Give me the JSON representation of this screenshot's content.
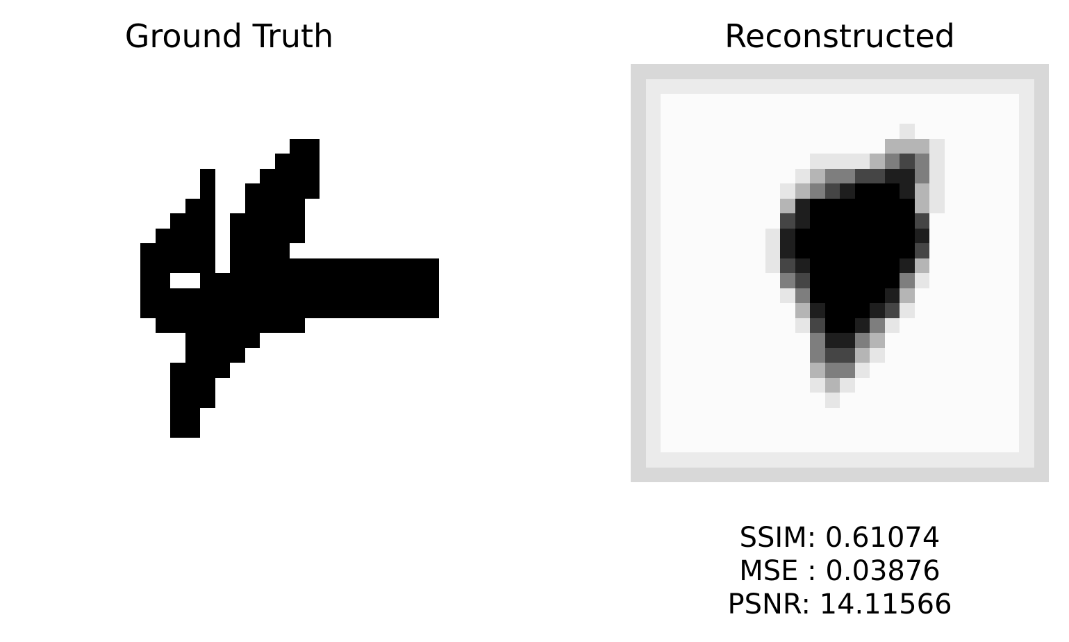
{
  "panels": {
    "left": {
      "title": "Ground Truth"
    },
    "right": {
      "title": "Reconstructed"
    }
  },
  "metrics": {
    "ssim": "SSIM: 0.61074",
    "mse": "MSE : 0.03876",
    "psnr": "PSNR: 14.11566"
  },
  "images": {
    "size": 28,
    "ground_truth_rows": [
      "............................",
      "............................",
      "............................",
      "............................",
      "............................",
      "..................##........",
      ".................###........",
      "............#...####........",
      "............#..#####........",
      "...........##..####.........",
      "..........###.#####.........",
      ".........####.#####.........",
      "........#####.####..........",
      "........#####.##############",
      "........##..#################",
      "........#####################",
      "........####################",
      ".........##########.........",
      "...........#####............",
      "...........####.............",
      "..........####..............",
      "..........###...............",
      "..........###...............",
      "..........##................",
      "..........##................",
      "............................",
      "............................",
      "............................"
    ],
    "reconstructed_rows": [
      "1111111111111111111111111111",
      "1222222222222222222222222221",
      "1233333333333333333333333321",
      "1233333333333333333333333321",
      "1233333333333333334333333321",
      "1233333333333333355543333321",
      "1233333333334444567643333321",
      "1233333333345667788643333321",
      "1233333333456789998543333321",
      "1233333333589999999543333321",
      "1233333333789999999733333321",
      "1233333334899999999833333321",
      "1233333334899999999733333321",
      "1233333334789999998533333321",
      "1233333333679999996433333321",
      "1233333333469999985333333321",
      "1233333333358999874333333321",
      "1233333333347998643333333321",
      "1233333333336886533333333321",
      "1233333333336775433333333321",
      "1233333333335664333333333321",
      "1233333333334543333333333321",
      "1233333333333433333333333321",
      "1233333333333333333333333321",
      "1233333333333333333333333321",
      "1233333333333333333333333321",
      "1222222222222222222222222221",
      "1111111111111111111111111111"
    ]
  }
}
